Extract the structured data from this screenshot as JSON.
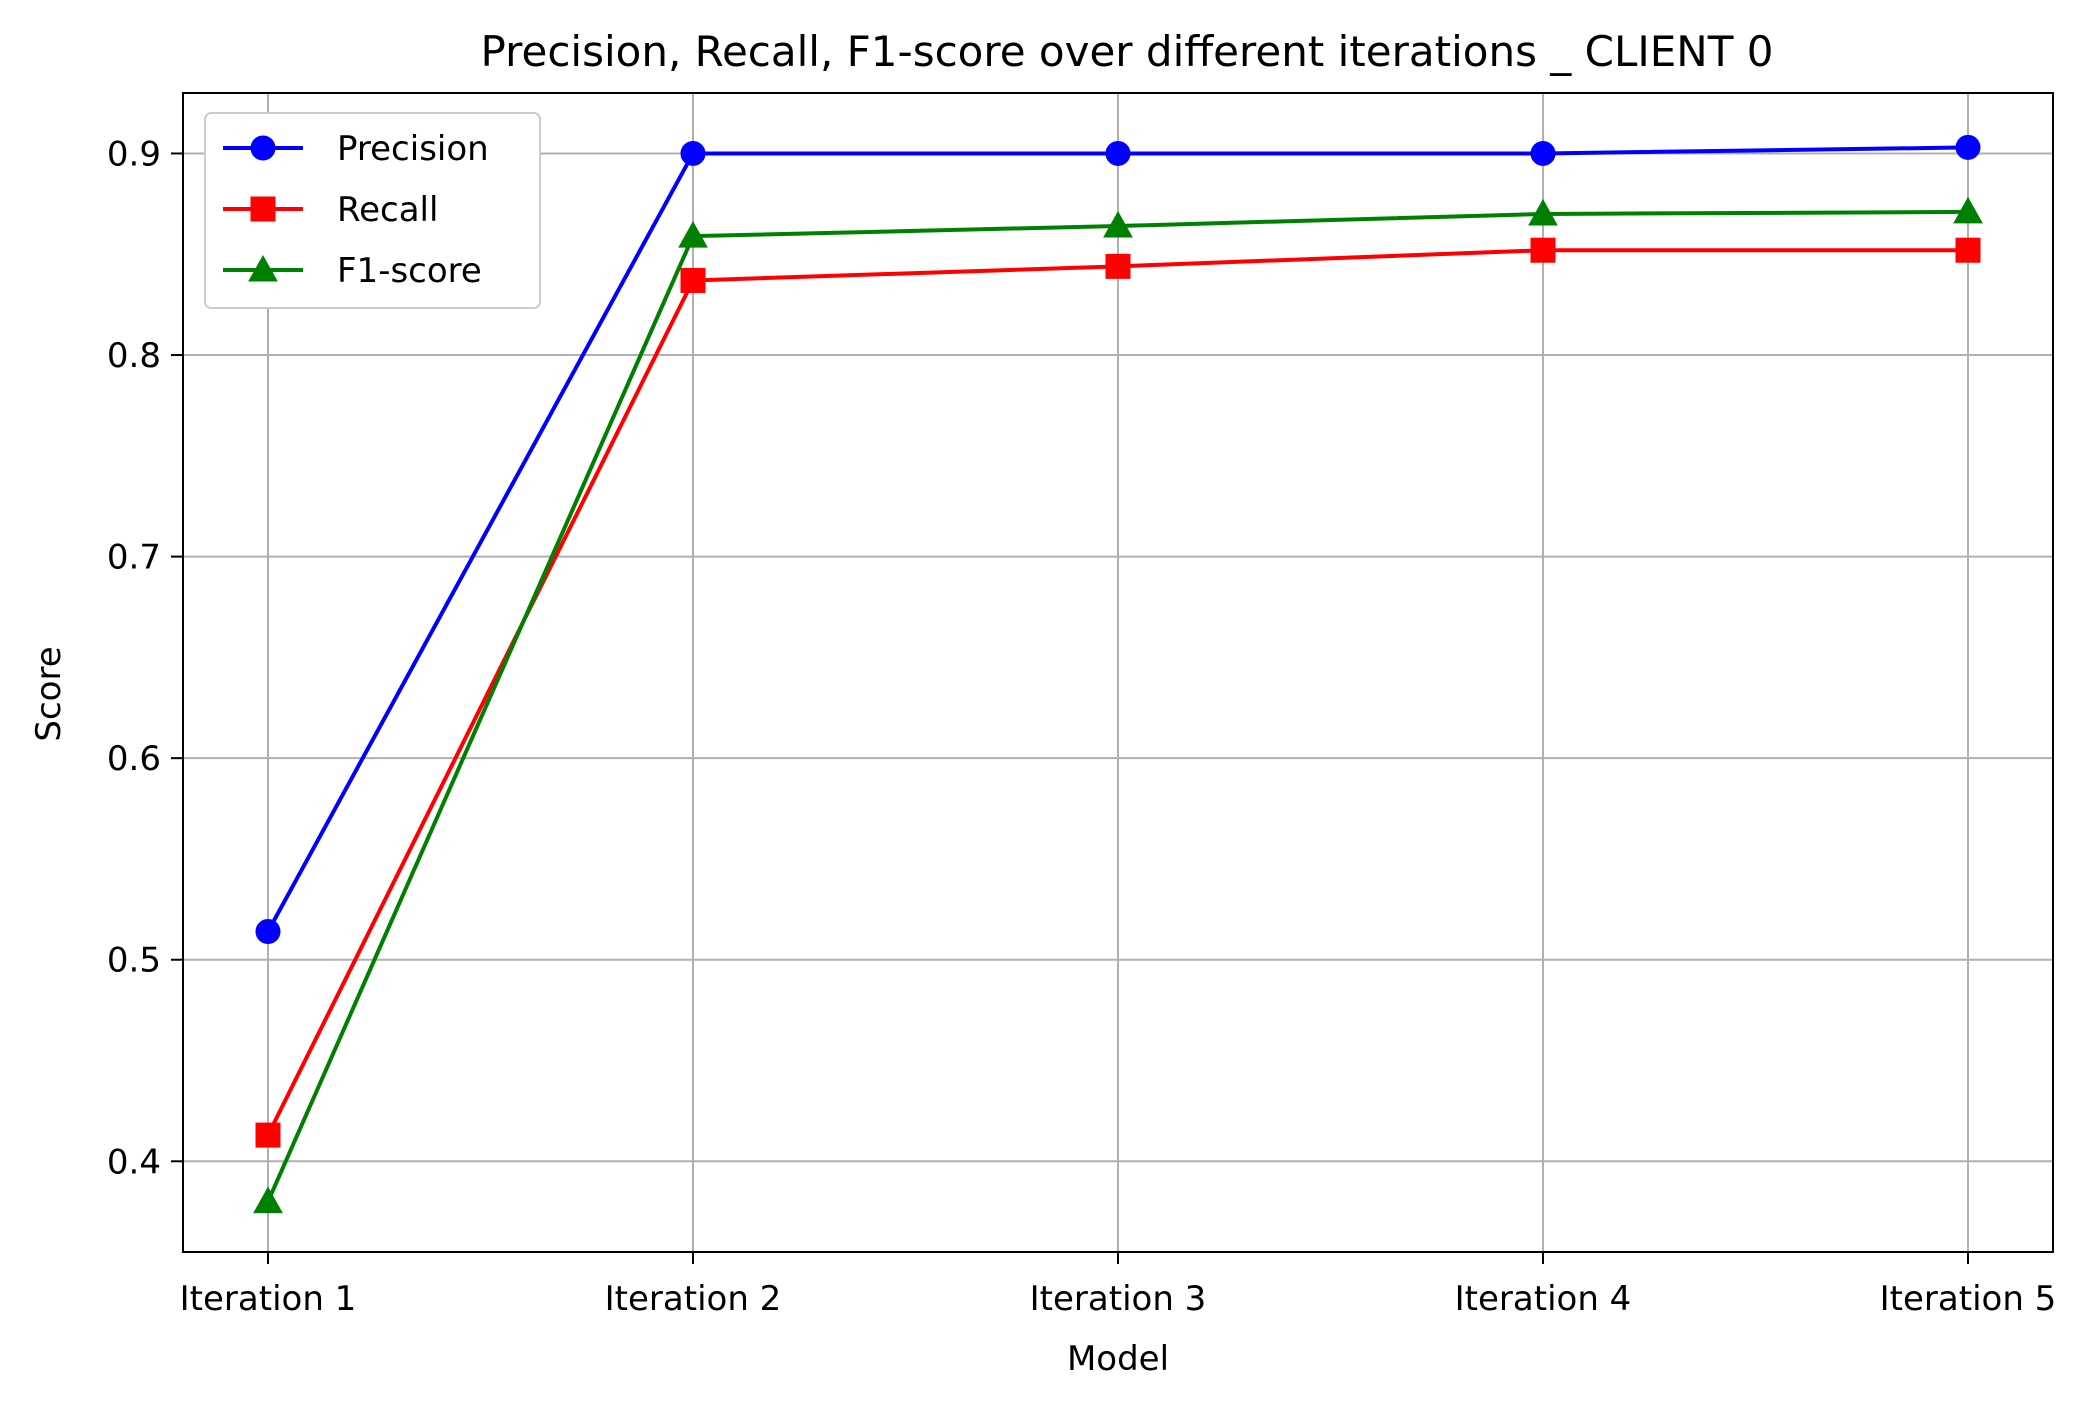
{
  "chart_data": {
    "type": "line",
    "title": "Precision, Recall, F1-score over different iterations _ CLIENT 0",
    "xlabel": "Model",
    "ylabel": "Score",
    "categories": [
      "Iteration 1",
      "Iteration 2",
      "Iteration 3",
      "Iteration 4",
      "Iteration 5"
    ],
    "ylim": [
      0.355,
      0.93
    ],
    "yticks": [
      0.4,
      0.5,
      0.6,
      0.7,
      0.8,
      0.9
    ],
    "ytick_labels": [
      "0.4",
      "0.5",
      "0.6",
      "0.7",
      "0.8",
      "0.9"
    ],
    "grid": true,
    "legend_position": "top-left",
    "series": [
      {
        "name": "Precision",
        "color": "#0000ff",
        "marker": "circle",
        "values": [
          0.514,
          0.9,
          0.9,
          0.9,
          0.903
        ]
      },
      {
        "name": "Recall",
        "color": "#ff0000",
        "marker": "square",
        "values": [
          0.413,
          0.837,
          0.844,
          0.852,
          0.852
        ]
      },
      {
        "name": "F1-score",
        "color": "#008000",
        "marker": "triangle",
        "values": [
          0.38,
          0.859,
          0.864,
          0.87,
          0.871
        ]
      }
    ]
  }
}
